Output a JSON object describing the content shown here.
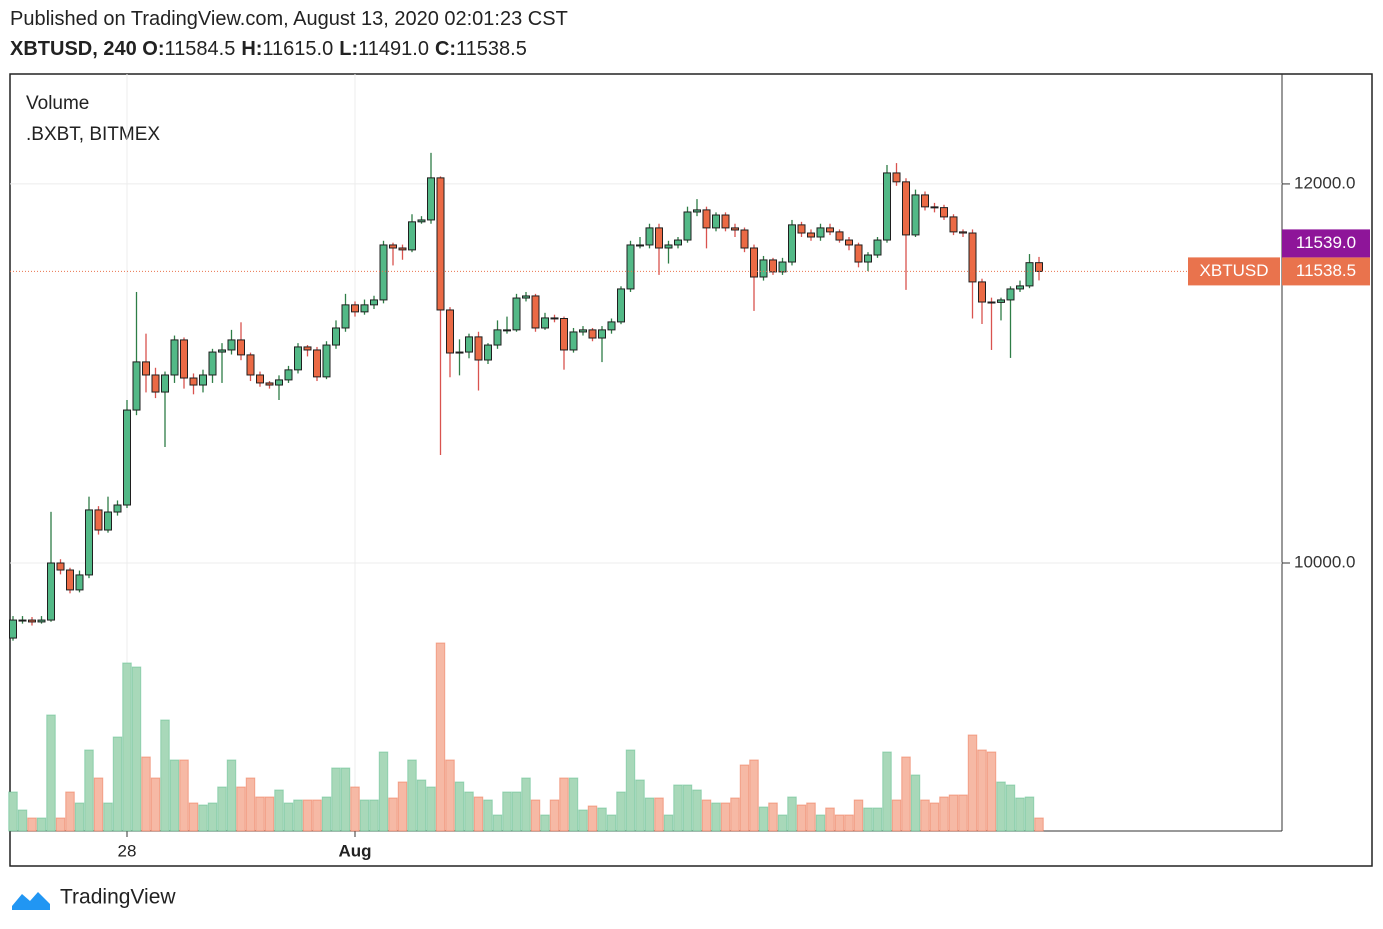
{
  "header": {
    "published": "Published on TradingView.com, August 13, 2020 02:01:23 CST",
    "symbol": "XBTUSD, 240",
    "ohlc": [
      {
        "label": "O:",
        "value": "11584.5"
      },
      {
        "label": "H:",
        "value": "11615.0"
      },
      {
        "label": "L:",
        "value": "11491.0"
      },
      {
        "label": "C:",
        "value": "11538.5"
      }
    ]
  },
  "chart_data": {
    "type": "candlestick",
    "legend": [
      "Volume",
      ".BXBT, BITMEX"
    ],
    "categories": [
      null,
      null,
      null,
      null,
      null,
      null,
      null,
      null,
      null,
      null,
      null,
      null,
      "28",
      null,
      null,
      null,
      null,
      null,
      null,
      null,
      null,
      null,
      null,
      null,
      null,
      null,
      null,
      null,
      null,
      null,
      null,
      null,
      null,
      null,
      null,
      null,
      "Aug",
      null,
      null,
      null,
      null,
      null,
      null,
      null,
      null,
      null,
      null,
      null,
      null,
      null,
      null,
      null,
      null,
      null,
      null,
      null,
      null,
      null,
      null,
      null,
      null,
      null,
      null,
      null,
      null,
      null,
      null,
      null,
      null,
      null,
      null,
      null,
      null,
      null,
      null,
      null,
      null,
      null,
      null,
      null,
      null,
      null,
      null,
      null,
      null,
      null,
      null,
      null,
      null,
      null,
      null,
      null,
      null,
      null,
      null,
      null,
      null,
      null,
      null,
      null,
      null,
      null,
      null,
      null,
      null,
      null,
      null,
      null,
      null
    ],
    "open": [
      9604,
      9699,
      9699,
      9689,
      9699,
      10000,
      9963,
      9858,
      9937,
      10280,
      10174,
      10269,
      10306,
      10807,
      11061,
      10992,
      10902,
      10992,
      11177,
      10976,
      10939,
      10992,
      11113,
      11124,
      11177,
      11098,
      10992,
      10950,
      10939,
      10966,
      11019,
      11140,
      11124,
      10982,
      11150,
      11240,
      11362,
      11325,
      11362,
      11388,
      11678,
      11662,
      11652,
      11800,
      11810,
      12032,
      11335,
      11108,
      11113,
      11193,
      11071,
      11150,
      11230,
      11230,
      11398,
      11409,
      11240,
      11293,
      11290,
      11124,
      11219,
      11230,
      11187,
      11230,
      11272,
      11446,
      11678,
      11678,
      11768,
      11662,
      11678,
      11704,
      11852,
      11863,
      11768,
      11836,
      11768,
      11757,
      11662,
      11509,
      11599,
      11536,
      11588,
      11784,
      11741,
      11720,
      11768,
      11747,
      11704,
      11678,
      11588,
      11625,
      11704,
      12058,
      12011,
      11731,
      11942,
      11879,
      11875,
      11826,
      11747,
      11741,
      11483,
      11377,
      11375,
      11388,
      11446,
      11462,
      11584.5
    ],
    "high": [
      9720,
      9720,
      9715,
      9720,
      10270,
      10020,
      9975,
      9960,
      10350,
      10300,
      10350,
      10330,
      10860,
      11430,
      11210,
      11030,
      11010,
      11200,
      11190,
      11000,
      11020,
      11130,
      11160,
      11230,
      11270,
      11110,
      11010,
      10960,
      10990,
      11040,
      11160,
      11150,
      11140,
      11170,
      11280,
      11420,
      11380,
      11390,
      11410,
      11700,
      11690,
      11680,
      11840,
      11830,
      12164,
      12040,
      11350,
      11180,
      11210,
      11220,
      11160,
      11280,
      11300,
      11420,
      11430,
      11420,
      11320,
      11310,
      11300,
      11240,
      11250,
      11240,
      11250,
      11290,
      11460,
      11700,
      11720,
      11790,
      11790,
      11700,
      11720,
      11880,
      11920,
      11880,
      11850,
      11850,
      11790,
      11770,
      11680,
      11620,
      11610,
      11610,
      11810,
      11800,
      11760,
      11790,
      11790,
      11760,
      11720,
      11690,
      11640,
      11720,
      12100,
      12110,
      12030,
      11970,
      11960,
      11900,
      11890,
      11840,
      11760,
      11760,
      11500,
      11400,
      11400,
      11460,
      11490,
      11630,
      11615
    ],
    "low": [
      9590,
      9680,
      9670,
      9680,
      9690,
      9940,
      9840,
      9845,
      9920,
      10150,
      10160,
      10250,
      10290,
      10780,
      10900,
      10870,
      10612,
      10950,
      10920,
      10890,
      10900,
      10950,
      10950,
      11100,
      11070,
      10960,
      10930,
      10920,
      10860,
      10950,
      11000,
      11090,
      10960,
      10970,
      11130,
      11220,
      11300,
      11310,
      11340,
      11370,
      11570,
      11600,
      11640,
      11790,
      11790,
      10570,
      10980,
      10990,
      11080,
      10910,
      11050,
      11130,
      11210,
      11220,
      11380,
      11220,
      11230,
      11270,
      11020,
      11110,
      11200,
      11170,
      11060,
      11210,
      11260,
      11430,
      11660,
      11660,
      11520,
      11580,
      11660,
      11690,
      11830,
      11660,
      11750,
      11750,
      11720,
      11640,
      11330,
      11490,
      11520,
      11520,
      11570,
      11720,
      11700,
      11700,
      11730,
      11690,
      11650,
      11560,
      11540,
      11610,
      11690,
      11990,
      11441,
      11720,
      11860,
      11850,
      11810,
      11730,
      11720,
      11290,
      11261,
      11124,
      11280,
      11082,
      11430,
      11450,
      11491
    ],
    "close": [
      9699,
      9699,
      9689,
      9699,
      10000,
      9963,
      9858,
      9937,
      10280,
      10174,
      10269,
      10306,
      10807,
      11061,
      10992,
      10902,
      10992,
      11177,
      10976,
      10939,
      10992,
      11113,
      11124,
      11177,
      11098,
      10992,
      10950,
      10939,
      10966,
      11019,
      11140,
      11124,
      10982,
      11150,
      11240,
      11362,
      11325,
      11362,
      11388,
      11678,
      11662,
      11652,
      11800,
      11810,
      12032,
      11335,
      11108,
      11113,
      11193,
      11071,
      11150,
      11230,
      11230,
      11398,
      11409,
      11240,
      11293,
      11290,
      11124,
      11219,
      11230,
      11187,
      11230,
      11272,
      11446,
      11678,
      11678,
      11768,
      11662,
      11678,
      11704,
      11852,
      11863,
      11768,
      11836,
      11768,
      11757,
      11662,
      11509,
      11599,
      11536,
      11588,
      11784,
      11741,
      11720,
      11768,
      11747,
      11704,
      11678,
      11588,
      11625,
      11704,
      12058,
      12011,
      11731,
      11942,
      11879,
      11875,
      11826,
      11747,
      11741,
      11483,
      11377,
      11375,
      11388,
      11446,
      11462,
      11584.5,
      11538.5
    ],
    "volume": [
      39,
      21,
      13,
      13,
      116,
      13,
      39,
      28,
      81,
      53,
      28,
      94,
      168,
      164,
      74,
      53,
      111,
      71,
      71,
      28,
      26,
      28,
      44,
      71,
      44,
      53,
      34,
      34,
      41,
      28,
      31,
      31,
      31,
      34,
      63,
      63,
      44,
      31,
      31,
      79,
      33,
      49,
      71,
      51,
      44,
      188,
      71,
      49,
      39,
      34,
      31,
      16,
      39,
      39,
      53,
      31,
      16,
      31,
      53,
      53,
      21,
      25,
      23,
      16,
      39,
      81,
      51,
      33,
      33,
      16,
      46,
      46,
      41,
      31,
      28,
      28,
      33,
      66,
      71,
      24,
      28,
      16,
      34,
      26,
      28,
      16,
      23,
      16,
      16,
      31,
      23,
      23,
      79,
      31,
      74,
      56,
      31,
      28,
      34,
      36,
      36,
      96,
      81,
      79,
      49,
      46,
      33,
      34,
      13
    ],
    "ylim": [
      8586,
      12580
    ],
    "yticks": [
      {
        "value": 10000,
        "label": "10000.0"
      },
      {
        "value": 12000,
        "label": "12000.0"
      }
    ],
    "volume_ylim": [
      0,
      200
    ],
    "grid": true,
    "up_color": "#53b987",
    "down_color": "#eb6a45",
    "wick_up_color": "#2e7d46",
    "wick_down_color": "#d9534f",
    "volume_up_color": "#a8d8b9",
    "volume_down_color": "#f6b9a5",
    "last_price": 11538.5,
    "last_price_symbol": "XBTUSD",
    "last_price_color": "#e9734d",
    "index_price": {
      "value": 11539,
      "label": "11539.0"
    },
    "index_price_color": "#8e1599"
  }
}
